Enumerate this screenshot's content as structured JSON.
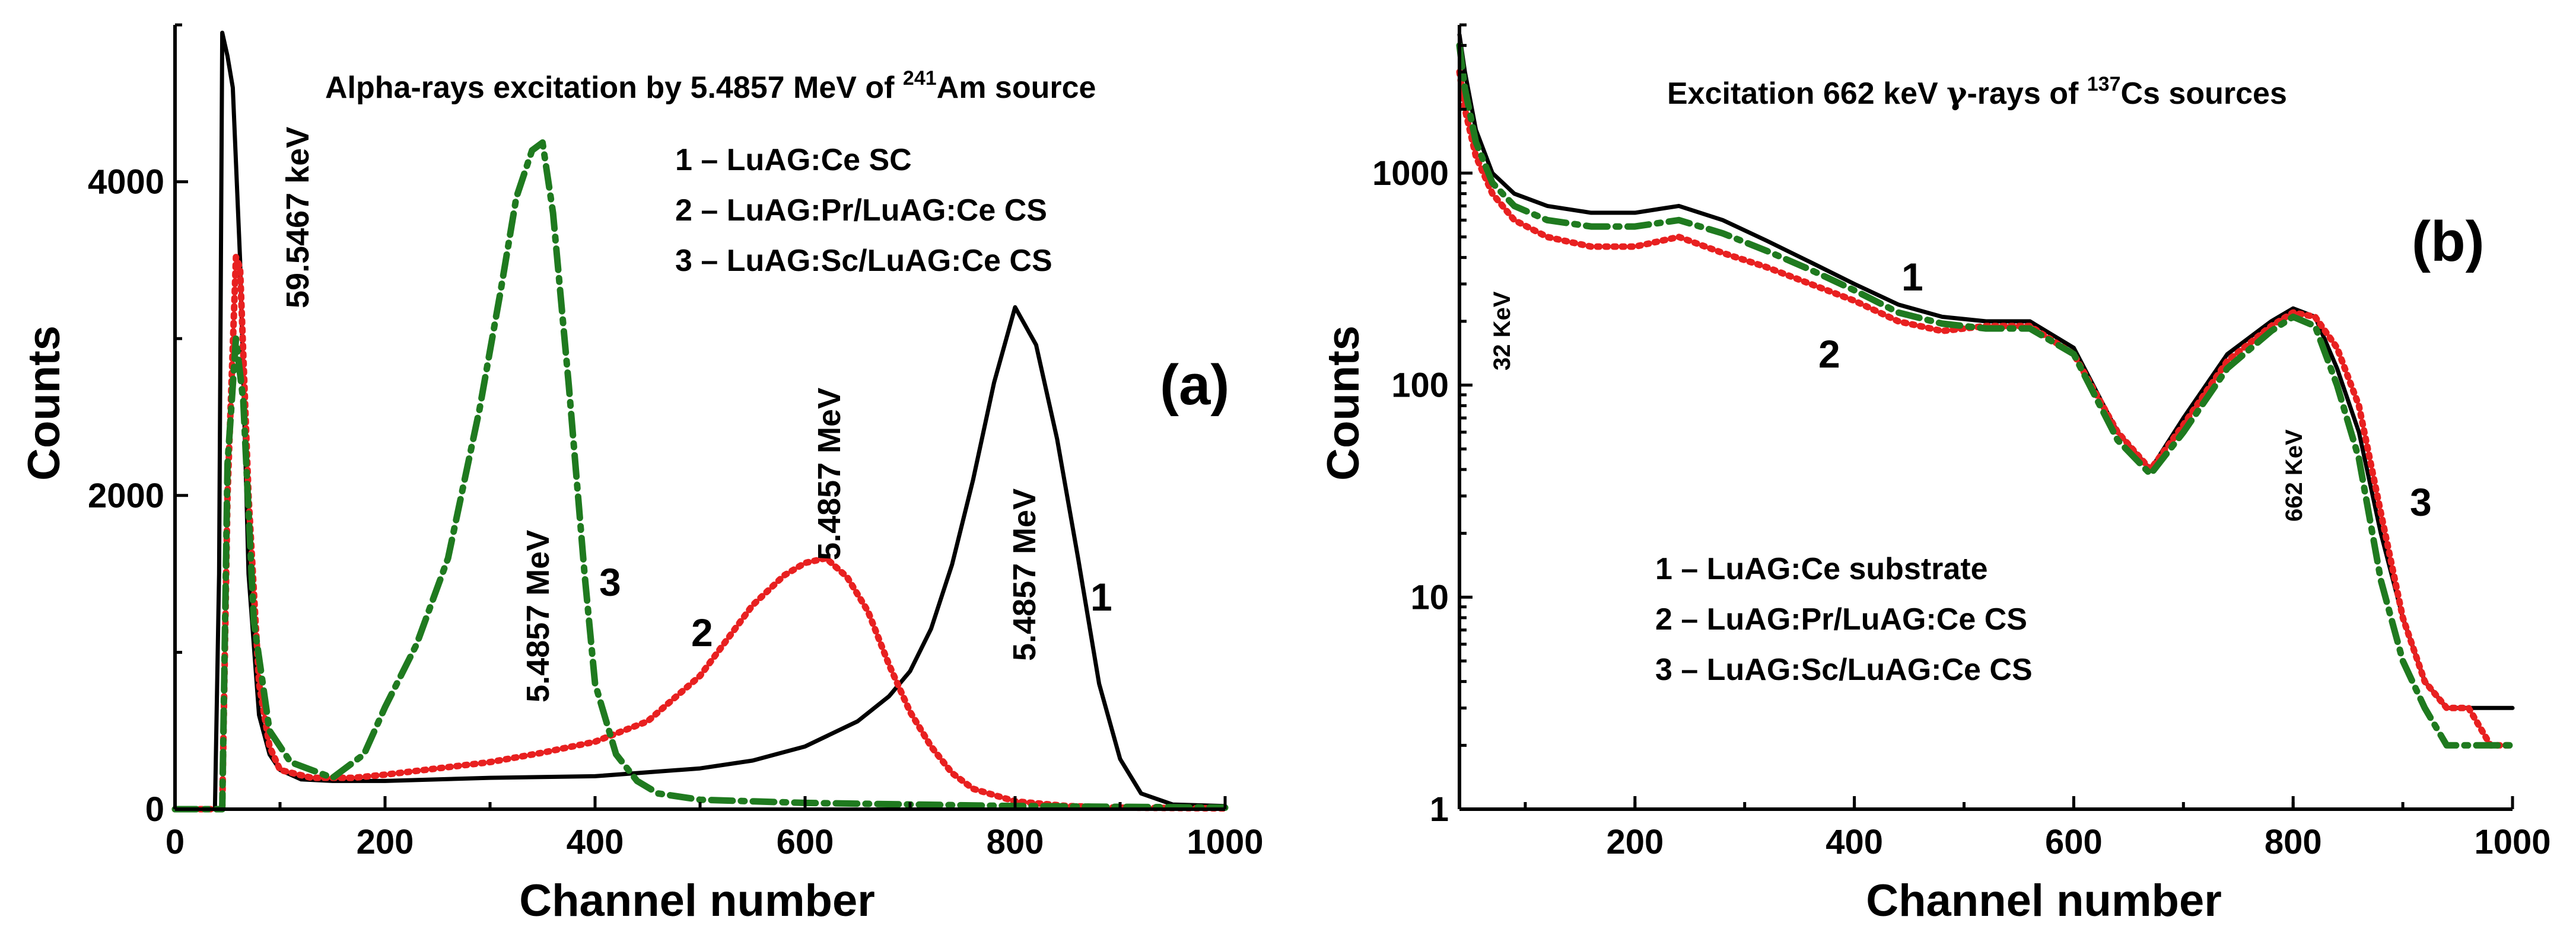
{
  "chart_data": [
    {
      "panel": "(a)",
      "type": "line",
      "title_prefix": "Alpha-rays excitation by 5.4857 MeV of ",
      "title_isotope_mass": "241",
      "title_isotope": "Am",
      "title_suffix": " source",
      "xlabel": "Channel number",
      "ylabel": "Counts",
      "xlim": [
        0,
        1000
      ],
      "ylim": [
        0,
        5000
      ],
      "y_scale": "linear",
      "x_ticks": [
        "0",
        "200",
        "400",
        "600",
        "800",
        "1000"
      ],
      "y_ticks": [
        "0",
        "2000",
        "4000"
      ],
      "legend": [
        "1 – LuAG:Ce SC",
        "2 – LuAG:Pr/LuAG:Ce CS",
        "3 – LuAG:Sc/LuAG:Ce CS"
      ],
      "legend_position": "top-center",
      "annotations": [
        "59.5467 keV",
        "5.4857 MeV",
        "5.4857 MeV",
        "5.4857 MeV"
      ],
      "curve_labels": [
        "3",
        "2",
        "1"
      ],
      "series": [
        {
          "id": "1",
          "color": "#000000",
          "style": "solid",
          "x": [
            0,
            38,
            42,
            45,
            50,
            55,
            62,
            70,
            80,
            90,
            100,
            120,
            150,
            200,
            300,
            400,
            500,
            550,
            600,
            650,
            680,
            700,
            720,
            740,
            760,
            780,
            800,
            820,
            840,
            860,
            880,
            900,
            920,
            950,
            1000
          ],
          "y": [
            0,
            0,
            1500,
            4950,
            4800,
            4600,
            3500,
            1500,
            600,
            350,
            250,
            190,
            180,
            180,
            200,
            210,
            260,
            310,
            400,
            560,
            720,
            880,
            1150,
            1560,
            2100,
            2720,
            3200,
            2960,
            2360,
            1600,
            800,
            320,
            100,
            30,
            20
          ]
        },
        {
          "id": "2",
          "color": "#e82020",
          "style": "dotted",
          "x": [
            0,
            45,
            50,
            58,
            62,
            70,
            80,
            90,
            100,
            130,
            170,
            200,
            250,
            300,
            350,
            400,
            450,
            500,
            550,
            580,
            600,
            620,
            640,
            660,
            680,
            700,
            720,
            740,
            760,
            800,
            850,
            900,
            1000
          ],
          "y": [
            0,
            0,
            2000,
            3520,
            3450,
            2000,
            800,
            400,
            250,
            200,
            200,
            220,
            260,
            300,
            360,
            430,
            560,
            850,
            1300,
            1490,
            1570,
            1600,
            1480,
            1260,
            920,
            620,
            400,
            230,
            130,
            50,
            20,
            10,
            5
          ]
        },
        {
          "id": "3",
          "color": "#1f7a1f",
          "style": "dash-dot",
          "x": [
            0,
            45,
            50,
            58,
            65,
            75,
            90,
            110,
            150,
            180,
            200,
            230,
            260,
            290,
            310,
            325,
            340,
            350,
            360,
            375,
            390,
            400,
            420,
            440,
            460,
            500,
            600,
            800,
            1000
          ],
          "y": [
            0,
            0,
            2200,
            3000,
            2600,
            1200,
            500,
            300,
            200,
            350,
            650,
            1050,
            1600,
            2550,
            3300,
            3900,
            4200,
            4250,
            3800,
            2700,
            1500,
            800,
            350,
            180,
            100,
            60,
            40,
            20,
            10
          ]
        }
      ]
    },
    {
      "panel": "(b)",
      "type": "line",
      "title_prefix": "Excitation 662 keV ",
      "title_greek": "γ",
      "title_middle": "-rays of ",
      "title_isotope_mass": "137",
      "title_isotope": "Cs",
      "title_suffix": " sources",
      "xlabel": "Channel number",
      "ylabel": "Counts",
      "xlim": [
        40,
        1000
      ],
      "ylim": [
        1,
        5000
      ],
      "y_scale": "log",
      "x_ticks": [
        "200",
        "400",
        "600",
        "800",
        "1000"
      ],
      "y_ticks": [
        "1",
        "10",
        "100",
        "1000"
      ],
      "legend": [
        "1 – LuAG:Ce substrate",
        "2 – LuAG:Pr/LuAG:Ce CS",
        "3 – LuAG:Sc/LuAG:Ce CS"
      ],
      "legend_position": "bottom-center",
      "annotations": [
        "32 KeV",
        "662 KeV"
      ],
      "curve_labels": [
        "1",
        "2",
        "3"
      ],
      "series": [
        {
          "id": "1",
          "color": "#000000",
          "style": "solid",
          "x": [
            40,
            45,
            55,
            70,
            90,
            120,
            160,
            200,
            240,
            280,
            320,
            360,
            400,
            440,
            480,
            520,
            560,
            600,
            640,
            670,
            700,
            740,
            780,
            800,
            820,
            840,
            860,
            880,
            900,
            920,
            940,
            960,
            980,
            1000
          ],
          "y": [
            4500,
            3000,
            1600,
            1000,
            800,
            700,
            650,
            650,
            700,
            600,
            480,
            380,
            300,
            240,
            210,
            200,
            200,
            150,
            60,
            40,
            70,
            140,
            200,
            230,
            210,
            120,
            60,
            20,
            8,
            4,
            3,
            3,
            3,
            3
          ]
        },
        {
          "id": "2",
          "color": "#e82020",
          "style": "dotted",
          "x": [
            40,
            45,
            55,
            70,
            90,
            120,
            160,
            200,
            240,
            280,
            320,
            360,
            400,
            440,
            480,
            520,
            560,
            600,
            640,
            670,
            700,
            740,
            780,
            800,
            820,
            840,
            860,
            880,
            900,
            920,
            940,
            960,
            980,
            1000
          ],
          "y": [
            3000,
            2000,
            1200,
            800,
            600,
            500,
            450,
            450,
            500,
            420,
            360,
            300,
            250,
            200,
            180,
            190,
            190,
            140,
            60,
            40,
            65,
            130,
            190,
            220,
            210,
            150,
            80,
            25,
            8,
            4,
            3,
            3,
            2,
            2
          ]
        },
        {
          "id": "3",
          "color": "#1f7a1f",
          "style": "dash-dot",
          "x": [
            40,
            45,
            55,
            70,
            90,
            120,
            160,
            200,
            240,
            280,
            320,
            360,
            400,
            440,
            480,
            520,
            560,
            600,
            640,
            670,
            700,
            740,
            780,
            800,
            820,
            840,
            860,
            880,
            900,
            920,
            940,
            960,
            980,
            1000
          ],
          "y": [
            4000,
            2500,
            1400,
            900,
            700,
            600,
            560,
            560,
            600,
            520,
            430,
            350,
            280,
            220,
            195,
            185,
            185,
            140,
            55,
            38,
            60,
            120,
            180,
            210,
            190,
            100,
            45,
            12,
            5,
            3,
            2,
            2,
            2,
            2
          ]
        }
      ]
    }
  ]
}
